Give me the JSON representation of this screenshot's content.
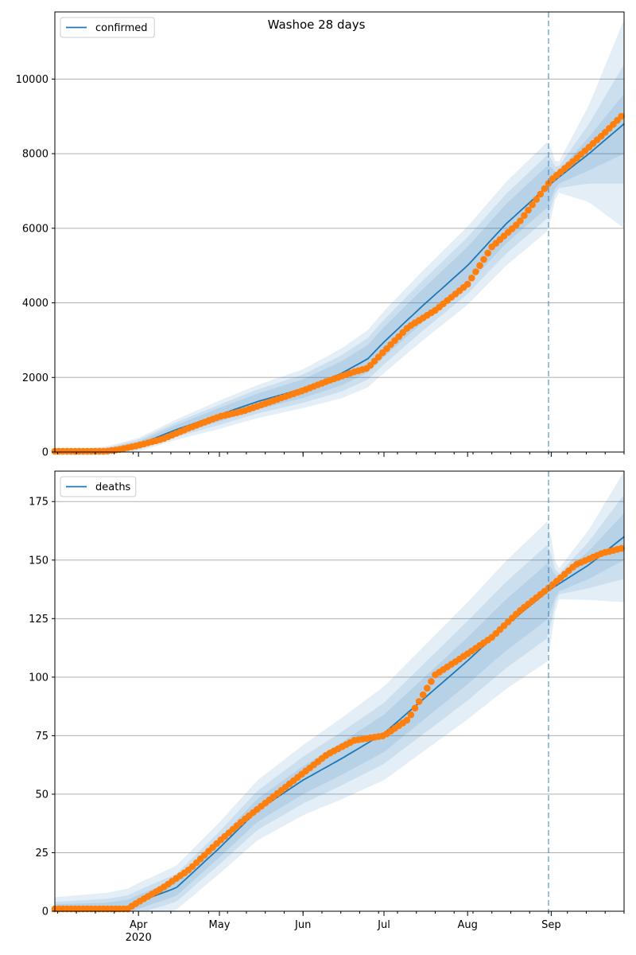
{
  "figure": {
    "title": "Washoe 28 days"
  },
  "x_axis": {
    "tick_labels": [
      "Apr",
      "May",
      "Jun",
      "Jul",
      "Aug",
      "Sep"
    ],
    "year_label": "2020"
  },
  "colors": {
    "line": "#1f77b4",
    "band": "#1f77b4",
    "points": "#ff7f0e",
    "grid": "#b0b0b0",
    "forecast_marker": "#1f77b4"
  },
  "chart_data": [
    {
      "type": "line",
      "legend": "confirmed",
      "legend_position": "top-left",
      "grid": "horizontal",
      "xlim": [
        "2020-03-01",
        "2020-09-28"
      ],
      "ylim": [
        0,
        11800
      ],
      "yticks": [
        0,
        2000,
        4000,
        6000,
        8000,
        10000
      ],
      "forecast_start": "2020-08-31",
      "model_median": {
        "x": [
          "2020-03-01",
          "2020-03-15",
          "2020-03-21",
          "2020-04-01",
          "2020-04-15",
          "2020-05-01",
          "2020-05-15",
          "2020-06-01",
          "2020-06-15",
          "2020-06-25",
          "2020-07-01",
          "2020-07-15",
          "2020-08-01",
          "2020-08-15",
          "2020-08-31",
          "2020-09-15",
          "2020-09-28"
        ],
        "y": [
          20,
          20,
          40,
          200,
          600,
          1000,
          1350,
          1700,
          2100,
          2500,
          2950,
          3900,
          5000,
          6100,
          7150,
          8000,
          8800
        ]
      },
      "uncertainty_band_halfwidth": {
        "x": [
          "2020-03-01",
          "2020-04-01",
          "2020-05-01",
          "2020-06-01",
          "2020-07-01",
          "2020-08-01",
          "2020-08-31",
          "2020-09-03",
          "2020-09-15",
          "2020-09-28"
        ],
        "inner": [
          10,
          80,
          180,
          250,
          400,
          500,
          560,
          150,
          450,
          800
        ],
        "middle": [
          15,
          130,
          270,
          380,
          600,
          760,
          850,
          250,
          800,
          1600
        ],
        "outer": [
          20,
          180,
          380,
          520,
          830,
          1050,
          1200,
          350,
          1300,
          2800
        ]
      },
      "observed": {
        "x": [
          "2020-03-01",
          "2020-03-10",
          "2020-03-20",
          "2020-03-25",
          "2020-04-01",
          "2020-04-10",
          "2020-04-20",
          "2020-05-01",
          "2020-05-10",
          "2020-05-20",
          "2020-06-01",
          "2020-06-10",
          "2020-06-20",
          "2020-06-25",
          "2020-07-01",
          "2020-07-10",
          "2020-07-20",
          "2020-08-01",
          "2020-08-10",
          "2020-08-20",
          "2020-09-01",
          "2020-09-10",
          "2020-09-20",
          "2020-09-27"
        ],
        "y": [
          20,
          20,
          20,
          70,
          180,
          350,
          650,
          950,
          1100,
          1350,
          1650,
          1900,
          2150,
          2250,
          2700,
          3350,
          3800,
          4500,
          5500,
          6150,
          7300,
          7850,
          8500,
          9000
        ]
      }
    },
    {
      "type": "line",
      "legend": "deaths",
      "legend_position": "top-left",
      "grid": "horizontal",
      "xlim": [
        "2020-03-01",
        "2020-09-28"
      ],
      "ylim": [
        0,
        188
      ],
      "yticks": [
        0,
        25,
        50,
        75,
        100,
        125,
        150,
        175
      ],
      "forecast_start": "2020-08-31",
      "model_median": {
        "x": [
          "2020-03-01",
          "2020-03-20",
          "2020-03-28",
          "2020-04-01",
          "2020-04-15",
          "2020-05-01",
          "2020-05-15",
          "2020-06-01",
          "2020-06-15",
          "2020-07-01",
          "2020-07-15",
          "2020-08-01",
          "2020-08-15",
          "2020-08-31",
          "2020-09-15",
          "2020-09-28"
        ],
        "y": [
          1,
          1,
          2,
          4,
          10,
          27,
          43,
          56,
          65,
          76,
          90,
          107,
          122,
          137,
          148,
          160
        ]
      },
      "uncertainty_band_halfwidth": {
        "x": [
          "2020-03-01",
          "2020-04-01",
          "2020-05-01",
          "2020-06-01",
          "2020-07-01",
          "2020-08-01",
          "2020-08-31",
          "2020-09-03",
          "2020-09-15",
          "2020-09-28"
        ],
        "inner": [
          2,
          3,
          4,
          6,
          8,
          10,
          12,
          3,
          6,
          10
        ],
        "middle": [
          3,
          5,
          7,
          10,
          13,
          17,
          20,
          4,
          10,
          18
        ],
        "outer": [
          5,
          8,
          11,
          15,
          20,
          25,
          30,
          6,
          15,
          28
        ]
      },
      "observed": {
        "x": [
          "2020-03-01",
          "2020-03-28",
          "2020-04-01",
          "2020-04-10",
          "2020-04-20",
          "2020-05-01",
          "2020-05-10",
          "2020-05-20",
          "2020-06-01",
          "2020-06-10",
          "2020-06-20",
          "2020-07-01",
          "2020-07-10",
          "2020-07-20",
          "2020-08-01",
          "2020-08-10",
          "2020-08-20",
          "2020-09-01",
          "2020-09-10",
          "2020-09-20",
          "2020-09-27"
        ],
        "y": [
          1,
          1,
          4,
          10,
          18,
          30,
          39,
          48,
          59,
          67,
          73,
          75,
          82,
          101,
          110,
          117,
          128,
          139,
          148,
          153,
          155
        ]
      }
    }
  ]
}
